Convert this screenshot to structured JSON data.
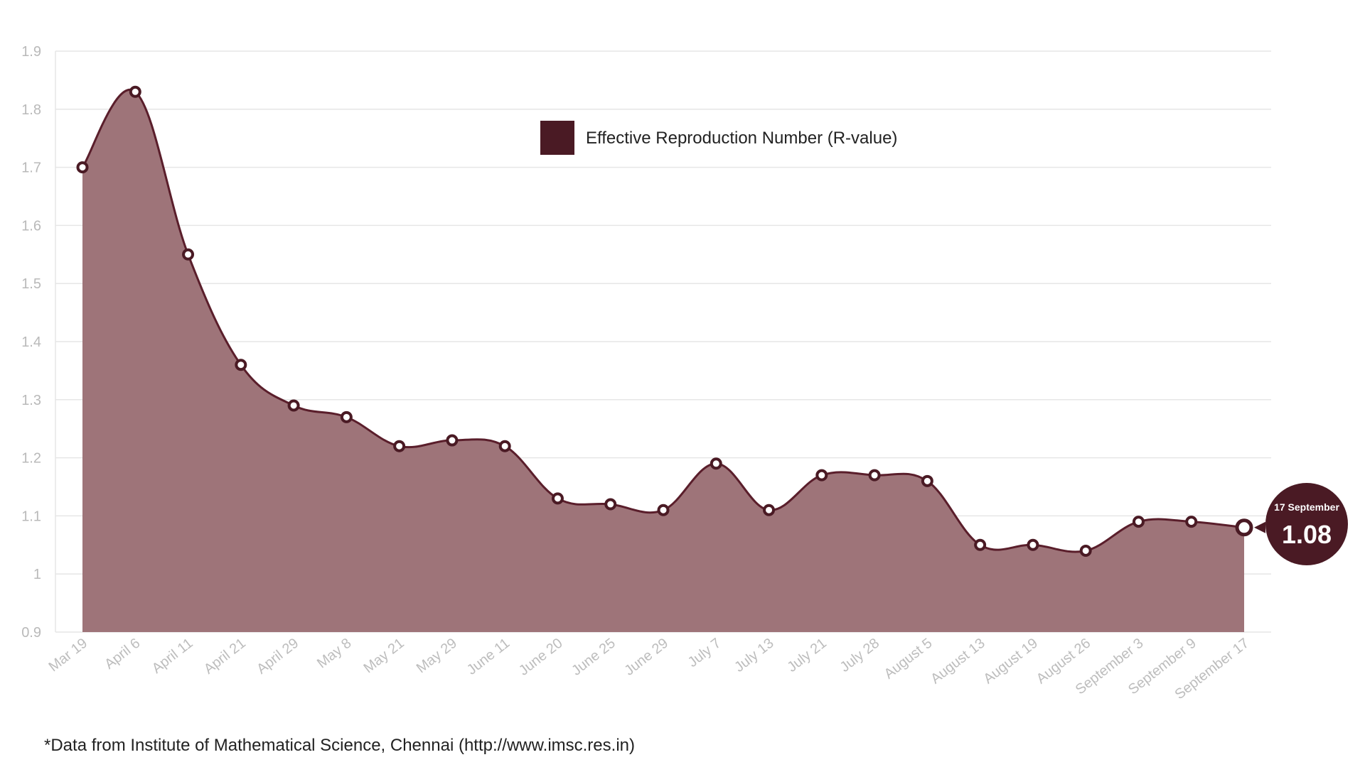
{
  "chart_data": {
    "type": "area",
    "categories": [
      "Mar 19",
      "April 6",
      "April 11",
      "April 21",
      "April 29",
      "May 8",
      "May 21",
      "May 29",
      "June 11",
      "June 20",
      "June 25",
      "June 29",
      "July 7",
      "July 13",
      "July 21",
      "July 28",
      "August 5",
      "August 13",
      "August 19",
      "August 26",
      "September 3",
      "September 9",
      "September 17"
    ],
    "series": [
      {
        "name": "Effective Reproduction Number (R-value)",
        "values": [
          1.7,
          1.83,
          1.55,
          1.36,
          1.29,
          1.27,
          1.22,
          1.23,
          1.22,
          1.13,
          1.12,
          1.11,
          1.19,
          1.11,
          1.17,
          1.17,
          1.16,
          1.05,
          1.05,
          1.04,
          1.09,
          1.09,
          1.08
        ]
      }
    ],
    "yticks": [
      "0.9",
      "1",
      "1.1",
      "1.2",
      "1.3",
      "1.4",
      "1.5",
      "1.6",
      "1.7",
      "1.8",
      "1.9"
    ],
    "ylim": [
      0.9,
      1.9
    ],
    "grid": true,
    "legend_position": "top-center",
    "callout": {
      "date": "17 September",
      "value": "1.08"
    },
    "colors": {
      "line": "#5a1e2b",
      "fill": "#9e7479",
      "marker": "#4a1a24",
      "callout": "#4a1a24",
      "grid": "#e6e6e6",
      "tick": "#bbbbbb"
    }
  },
  "footnote": "*Data from Institute of Mathematical Science, Chennai (http://www.imsc.res.in)"
}
